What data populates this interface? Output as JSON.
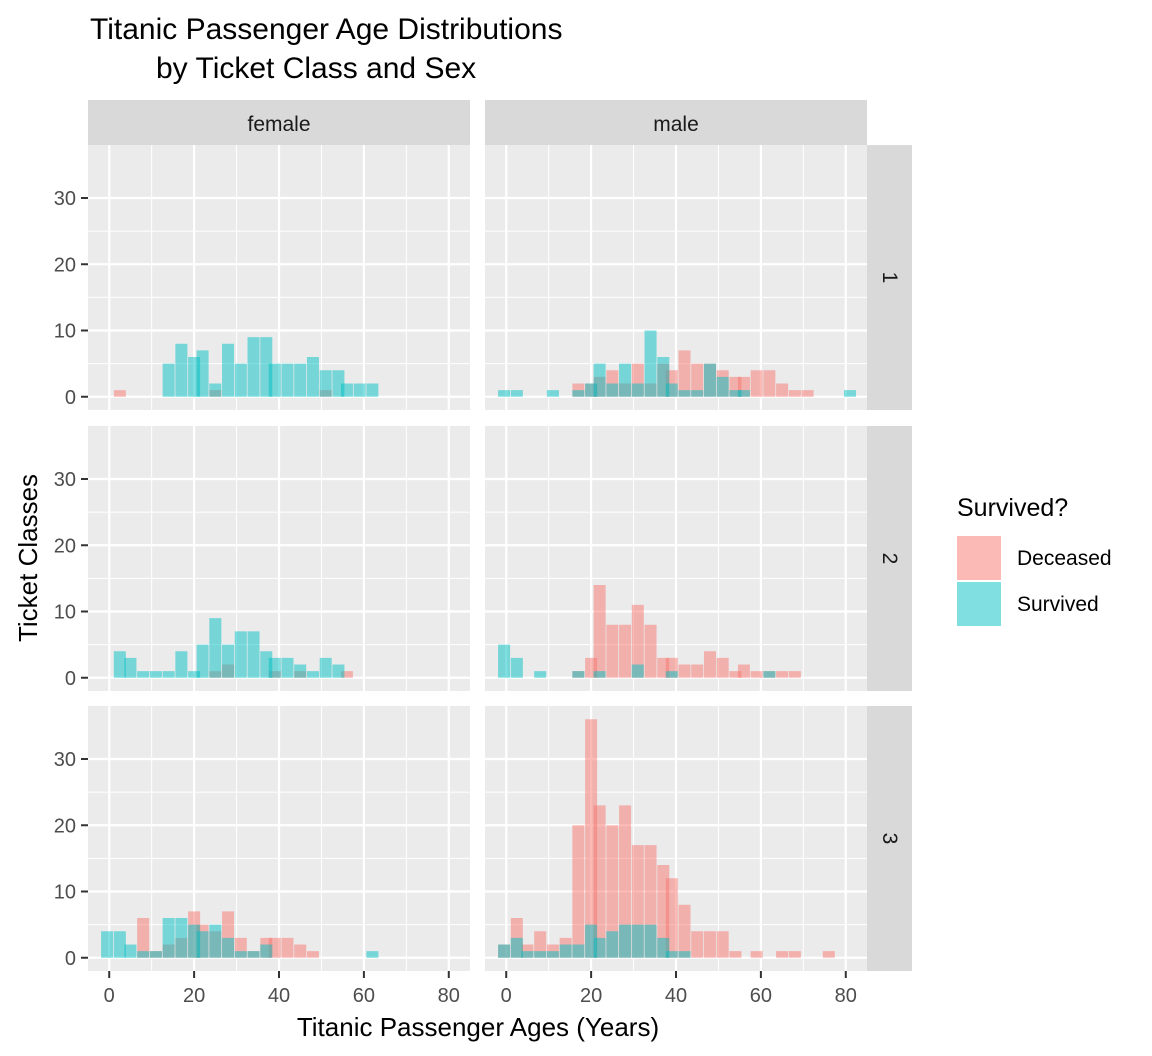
{
  "chart_data": {
    "type": "histogram-facet",
    "title_lines": [
      "Titanic Passenger Age Distributions",
      "by Ticket Class and Sex"
    ],
    "xlabel": "Titanic Passenger Ages (Years)",
    "ylabel": "Ticket Classes",
    "xlim": [
      -5,
      85
    ],
    "ylim": [
      -2,
      38
    ],
    "x_ticks": [
      "0",
      "20",
      "40",
      "60",
      "80"
    ],
    "y_ticks": [
      "0",
      "10",
      "20",
      "30"
    ],
    "bin_width": 2.83,
    "columns": [
      "female",
      "male"
    ],
    "rows": [
      "1",
      "2",
      "3"
    ],
    "legend": {
      "title": "Survived?",
      "position": "right",
      "items": [
        {
          "label": "Deceased",
          "color": "#F8766D"
        },
        {
          "label": "Survived",
          "color": "#00BFC4"
        }
      ]
    },
    "colors": {
      "panel_bg": "#EBEBEB",
      "strip_bg": "#D9D9D9",
      "grid": "#FFFFFF",
      "deceased": "#F8766D",
      "survived": "#00BFC4"
    },
    "panels": [
      {
        "sex": "female",
        "class": "1",
        "deceased": [
          [
            2.5,
            1
          ],
          [
            25,
            1
          ],
          [
            51,
            1
          ]
        ],
        "survived": [
          [
            14,
            5
          ],
          [
            17,
            8
          ],
          [
            20,
            6
          ],
          [
            22,
            7
          ],
          [
            25,
            2
          ],
          [
            28,
            8
          ],
          [
            31,
            5
          ],
          [
            34,
            9
          ],
          [
            37,
            9
          ],
          [
            39,
            5
          ],
          [
            42,
            5
          ],
          [
            45,
            5
          ],
          [
            48,
            6
          ],
          [
            51,
            4
          ],
          [
            54,
            4
          ],
          [
            56,
            2
          ],
          [
            59,
            2
          ],
          [
            62,
            2
          ]
        ]
      },
      {
        "sex": "male",
        "class": "1",
        "deceased": [
          [
            17,
            2
          ],
          [
            20,
            2
          ],
          [
            22,
            3
          ],
          [
            25,
            4
          ],
          [
            28,
            2
          ],
          [
            31,
            5
          ],
          [
            34,
            2
          ],
          [
            37,
            5
          ],
          [
            39,
            4
          ],
          [
            42,
            7
          ],
          [
            45,
            5
          ],
          [
            48,
            5
          ],
          [
            51,
            4
          ],
          [
            54,
            3
          ],
          [
            56,
            3
          ],
          [
            59,
            4
          ],
          [
            62,
            4
          ],
          [
            65,
            2
          ],
          [
            68,
            1
          ],
          [
            71,
            1
          ]
        ],
        "survived": [
          [
            -0.5,
            1
          ],
          [
            2.5,
            1
          ],
          [
            11,
            1
          ],
          [
            17,
            1
          ],
          [
            20,
            2
          ],
          [
            22,
            5
          ],
          [
            25,
            2
          ],
          [
            28,
            5
          ],
          [
            31,
            2
          ],
          [
            34,
            10
          ],
          [
            37,
            6
          ],
          [
            39,
            2
          ],
          [
            42,
            1
          ],
          [
            45,
            1
          ],
          [
            48,
            5
          ],
          [
            51,
            3
          ],
          [
            54,
            1
          ],
          [
            56,
            1
          ],
          [
            62,
            0
          ],
          [
            81,
            1
          ]
        ]
      },
      {
        "sex": "female",
        "class": "2",
        "deceased": [
          [
            25,
            1
          ],
          [
            28,
            2
          ],
          [
            39,
            1
          ],
          [
            45,
            1
          ],
          [
            56,
            1
          ]
        ],
        "survived": [
          [
            2.5,
            4
          ],
          [
            5,
            3
          ],
          [
            8,
            1
          ],
          [
            11,
            1
          ],
          [
            14,
            1
          ],
          [
            17,
            4
          ],
          [
            20,
            1
          ],
          [
            22,
            5
          ],
          [
            25,
            9
          ],
          [
            28,
            5
          ],
          [
            31,
            7
          ],
          [
            34,
            7
          ],
          [
            37,
            4
          ],
          [
            39,
            3
          ],
          [
            42,
            3
          ],
          [
            45,
            2
          ],
          [
            48,
            1
          ],
          [
            51,
            3
          ],
          [
            54,
            2
          ]
        ]
      },
      {
        "sex": "male",
        "class": "2",
        "deceased": [
          [
            17,
            1
          ],
          [
            20,
            3
          ],
          [
            22,
            14
          ],
          [
            25,
            8
          ],
          [
            28,
            8
          ],
          [
            31,
            11
          ],
          [
            34,
            8
          ],
          [
            37,
            3
          ],
          [
            39,
            3
          ],
          [
            42,
            2
          ],
          [
            45,
            2
          ],
          [
            48,
            4
          ],
          [
            51,
            3
          ],
          [
            54,
            1
          ],
          [
            56,
            2
          ],
          [
            59,
            1
          ],
          [
            62,
            1
          ],
          [
            65,
            1
          ],
          [
            68,
            1
          ]
        ],
        "survived": [
          [
            -0.5,
            5
          ],
          [
            2.5,
            3
          ],
          [
            8,
            1
          ],
          [
            17,
            1
          ],
          [
            22,
            1
          ],
          [
            31,
            2
          ],
          [
            39,
            1
          ],
          [
            62,
            1
          ]
        ]
      },
      {
        "sex": "female",
        "class": "3",
        "deceased": [
          [
            8,
            6
          ],
          [
            11,
            1
          ],
          [
            14,
            2
          ],
          [
            17,
            3
          ],
          [
            20,
            7
          ],
          [
            22,
            5
          ],
          [
            25,
            4
          ],
          [
            28,
            7
          ],
          [
            31,
            3
          ],
          [
            34,
            1
          ],
          [
            37,
            3
          ],
          [
            39,
            3
          ],
          [
            42,
            3
          ],
          [
            45,
            2
          ],
          [
            48,
            1
          ],
          [
            62,
            0
          ]
        ],
        "survived": [
          [
            -0.5,
            4
          ],
          [
            2.5,
            4
          ],
          [
            5,
            2
          ],
          [
            8,
            1
          ],
          [
            11,
            1
          ],
          [
            14,
            6
          ],
          [
            17,
            6
          ],
          [
            20,
            5
          ],
          [
            22,
            4
          ],
          [
            25,
            5
          ],
          [
            28,
            3
          ],
          [
            31,
            1
          ],
          [
            34,
            1
          ],
          [
            37,
            2
          ],
          [
            62,
            1
          ]
        ]
      },
      {
        "sex": "male",
        "class": "3",
        "deceased": [
          [
            -0.5,
            2
          ],
          [
            2.5,
            6
          ],
          [
            5,
            2
          ],
          [
            8,
            4
          ],
          [
            11,
            2
          ],
          [
            14,
            3
          ],
          [
            17,
            20
          ],
          [
            20,
            36
          ],
          [
            22,
            23
          ],
          [
            25,
            20
          ],
          [
            28,
            23
          ],
          [
            31,
            17
          ],
          [
            34,
            17
          ],
          [
            37,
            14
          ],
          [
            39,
            12
          ],
          [
            42,
            8
          ],
          [
            45,
            4
          ],
          [
            48,
            4
          ],
          [
            51,
            4
          ],
          [
            54,
            1
          ],
          [
            59,
            1
          ],
          [
            65,
            1
          ],
          [
            68,
            1
          ],
          [
            76,
            1
          ]
        ],
        "survived": [
          [
            -0.5,
            2
          ],
          [
            2.5,
            3
          ],
          [
            5,
            1
          ],
          [
            8,
            1
          ],
          [
            11,
            1
          ],
          [
            14,
            2
          ],
          [
            17,
            2
          ],
          [
            20,
            5
          ],
          [
            22,
            3
          ],
          [
            25,
            4
          ],
          [
            28,
            5
          ],
          [
            31,
            5
          ],
          [
            34,
            5
          ],
          [
            37,
            3
          ],
          [
            39,
            1
          ],
          [
            42,
            1
          ]
        ]
      }
    ]
  }
}
